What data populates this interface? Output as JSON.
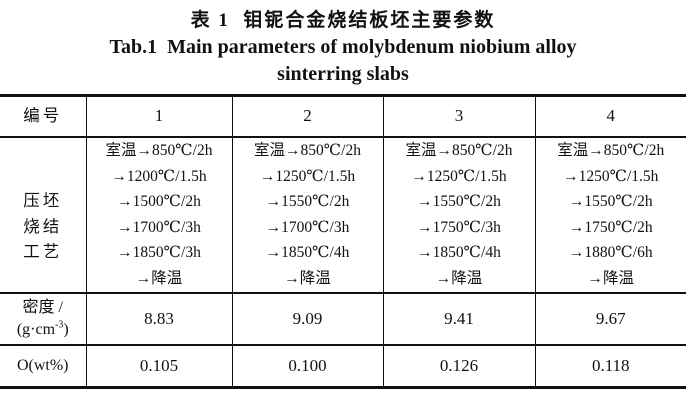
{
  "title": {
    "zh": "表 1  钼铌合金烧结板坯主要参数",
    "en_line1": "Tab.1  Main parameters of molybdenum niobium alloy",
    "en_line2": "sinterring slabs"
  },
  "table": {
    "header": {
      "label": "编号",
      "columns": [
        "1",
        "2",
        "3",
        "4"
      ]
    },
    "process_row": {
      "label": "压坯\n烧结\n工艺",
      "values": [
        "室温→850℃/2h\n→1200℃/1.5h\n→1500℃/2h\n→1700℃/3h\n→1850℃/3h\n→降温",
        "室温→850℃/2h\n→1250℃/1.5h\n→1550℃/2h\n→1700℃/3h\n→1850℃/4h\n→降温",
        "室温→850℃/2h\n→1250℃/1.5h\n→1550℃/2h\n→1750℃/3h\n→1850℃/4h\n→降温",
        "室温→850℃/2h\n→1250℃/1.5h\n→1550℃/2h\n→1750℃/2h\n→1880℃/6h\n→降温"
      ]
    },
    "density_row": {
      "label_line1": "密度 /",
      "unit_prefix": "(g·cm",
      "unit_sup": "-3",
      "unit_suffix": ")",
      "values": [
        "8.83",
        "9.09",
        "9.41",
        "9.67"
      ]
    },
    "oxygen_row": {
      "label": "O(wt%)",
      "values": [
        "0.105",
        "0.100",
        "0.126",
        "0.118"
      ]
    }
  },
  "colors": {
    "text": "#111111",
    "border": "#111111",
    "background": "#ffffff"
  }
}
